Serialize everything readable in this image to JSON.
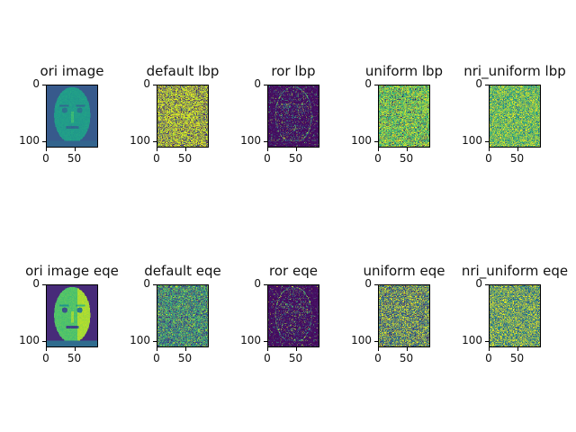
{
  "window": {
    "title": ""
  },
  "chart_data": {
    "type": "image-grid",
    "rows": 2,
    "cols": 5,
    "colormap": "viridis",
    "image_size": {
      "width": 92,
      "height": 112
    },
    "x_ticks": [
      "0",
      "50"
    ],
    "y_ticks": [
      "0",
      "100"
    ],
    "panels": [
      {
        "title": "ori image",
        "kind": "face"
      },
      {
        "title": "default lbp",
        "kind": "lbp-default"
      },
      {
        "title": "ror lbp",
        "kind": "lbp-ror"
      },
      {
        "title": "uniform lbp",
        "kind": "lbp-uniform"
      },
      {
        "title": "nri_uniform lbp",
        "kind": "lbp-nri"
      },
      {
        "title": "ori image eqe",
        "kind": "face-eq"
      },
      {
        "title": "default eqe",
        "kind": "lbp-default-eq"
      },
      {
        "title": "ror eqe",
        "kind": "lbp-ror-eq"
      },
      {
        "title": "uniform eqe",
        "kind": "lbp-uniform-eq"
      },
      {
        "title": "nri_uniform eqe",
        "kind": "lbp-nri-eq"
      }
    ]
  }
}
